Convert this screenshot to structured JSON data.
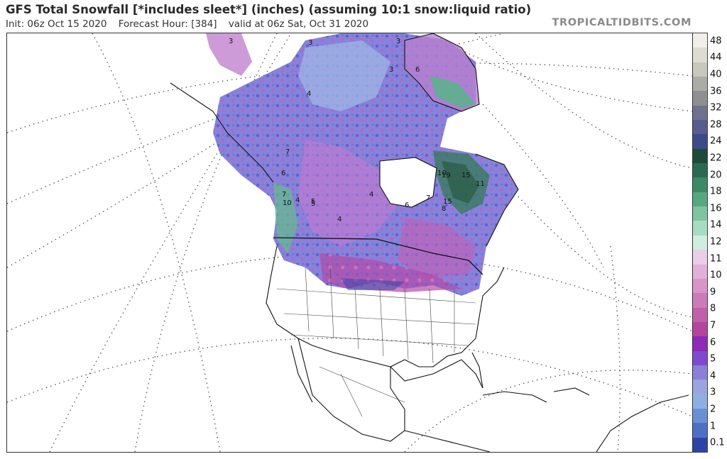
{
  "header": {
    "title": "GFS Total Snowfall [*includes sleet*] (inches) (assuming 10:1 snow:liquid ratio)",
    "init": "Init: 06z Oct 15 2020",
    "forecast_hour": "Forecast Hour: [384]",
    "valid": "valid at 06z Sat, Oct 31 2020",
    "brand": "TROPICALTIDBITS.COM"
  },
  "map": {
    "region": "North America",
    "map_labels": [
      "3",
      "3",
      "3",
      "4",
      "3",
      "6",
      "7",
      "6",
      "5",
      "4",
      "7",
      "10",
      "5",
      "4",
      "6",
      "7",
      "10",
      "15",
      "15",
      "19",
      "11",
      "4",
      "8"
    ]
  },
  "legend": {
    "unit": "inches",
    "labels": [
      "48",
      "44",
      "40",
      "36",
      "32",
      "28",
      "24",
      "22",
      "20",
      "18",
      "16",
      "14",
      "12",
      "11",
      "10",
      "9",
      "8",
      "7",
      "6",
      "5",
      "4",
      "3",
      "2",
      "1",
      "0.1"
    ],
    "colors": [
      "#f1efe8",
      "#dcdcd0",
      "#c8c8bc",
      "#acaca6",
      "#8f8f92",
      "#6f7190",
      "#565c8e",
      "#3c4a88",
      "#1e4a3a",
      "#2a6a52",
      "#3a8a66",
      "#56a880",
      "#7ec4a0",
      "#a6dcc2",
      "#cfeee0",
      "#eacde6",
      "#e2b0d8",
      "#d896c8",
      "#cc7ab8",
      "#c160aa",
      "#b4449c",
      "#8e2ab6",
      "#7e4ad0",
      "#8a80d8",
      "#9aa4e0",
      "#8eb0e0",
      "#6a90d4",
      "#4e70c4",
      "#2e44a4"
    ]
  }
}
